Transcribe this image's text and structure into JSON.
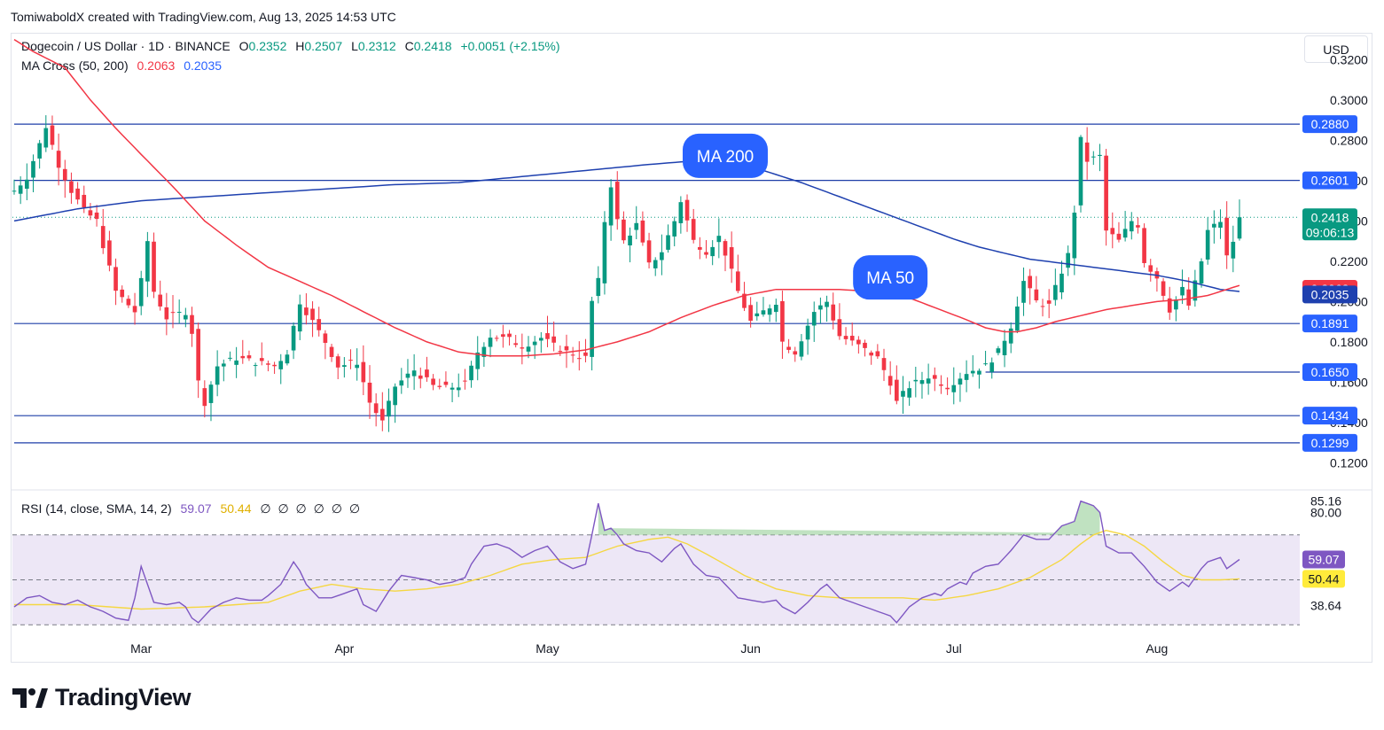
{
  "header": {
    "created_by": "TomiwaboldX created with TradingView.com, Aug 13, 2025 14:53 UTC"
  },
  "legend": {
    "symbol": "Dogecoin / US Dollar · 1D · BINANCE",
    "o_label": "O",
    "o_value": "0.2352",
    "h_label": "H",
    "h_value": "0.2507",
    "l_label": "L",
    "l_value": "0.2312",
    "c_label": "C",
    "c_value": "0.2418",
    "change": "+0.0051 (+2.15%)",
    "ma_title": "MA Cross (50, 200)",
    "ma50_value": "0.2063",
    "ma200_value": "0.2035",
    "rsi_title": "RSI (14, close, SMA, 14, 2)",
    "rsi_value": "59.07",
    "rsi_sma_value": "50.44",
    "rsi_na": "∅ ∅ ∅ ∅ ∅ ∅"
  },
  "currency_button": "USD",
  "brand": {
    "name": "TradingView"
  },
  "colors": {
    "up": "#089981",
    "down": "#f23645",
    "ma50": "#f23645",
    "ma200": "#1e40af",
    "level_line": "#1e3fa8",
    "rsi": "#7e57c2",
    "rsi_sma": "#f5d742",
    "rsi_band": "#ede7f6",
    "label_blue": "#2962ff",
    "label_current": "#089981"
  },
  "chart_data": {
    "type": "candlestick",
    "symbol": "Dogecoin / US Dollar",
    "interval": "1D",
    "exchange": "BINANCE",
    "price_axis": {
      "ylim": [
        0.107,
        0.332
      ],
      "ticks": [
        "0.3200",
        "0.3000",
        "0.2800",
        "0.2600",
        "0.2400",
        "0.2200",
        "0.2000",
        "0.1800",
        "0.1600",
        "0.1400",
        "0.1200"
      ]
    },
    "time_axis": {
      "labels": [
        "Mar",
        "Apr",
        "May",
        "Jun",
        "Jul",
        "Aug"
      ],
      "label_bar_index": [
        20,
        52,
        84,
        116,
        148,
        180
      ]
    },
    "bars_total": 194,
    "horizontal_levels": [
      {
        "value": 0.288,
        "label": "0.2880",
        "from_bar": 0
      },
      {
        "value": 0.2601,
        "label": "0.2601",
        "from_bar": 0
      },
      {
        "value": 0.1891,
        "label": "0.1891",
        "from_bar": 0
      },
      {
        "value": 0.165,
        "label": "0.1650",
        "from_bar": 153
      },
      {
        "value": 0.1434,
        "label": "0.1434",
        "from_bar": 0
      },
      {
        "value": 0.1299,
        "label": "0.1299",
        "from_bar": 0
      }
    ],
    "current_price": {
      "value": 0.2418,
      "label": "0.2418",
      "countdown": "09:06:13"
    },
    "ma50_label": {
      "value": 0.2063,
      "label": "0.2063"
    },
    "ma200_label": {
      "value": 0.2035,
      "label": "0.2035"
    },
    "annotations": [
      {
        "text": "MA 200",
        "bar": 112,
        "value": 0.2723
      },
      {
        "text": "MA 50",
        "bar": 138,
        "value": 0.212
      }
    ],
    "price_path": [
      [
        0,
        0.255
      ],
      [
        2,
        0.262
      ],
      [
        4,
        0.278
      ],
      [
        5,
        0.287
      ],
      [
        7,
        0.268
      ],
      [
        9,
        0.255
      ],
      [
        11,
        0.245
      ],
      [
        13,
        0.24
      ],
      [
        14,
        0.228
      ],
      [
        16,
        0.205
      ],
      [
        19,
        0.195
      ],
      [
        20,
        0.21
      ],
      [
        21,
        0.23
      ],
      [
        22,
        0.205
      ],
      [
        24,
        0.192
      ],
      [
        27,
        0.195
      ],
      [
        28,
        0.185
      ],
      [
        29,
        0.16
      ],
      [
        30,
        0.15
      ],
      [
        32,
        0.168
      ],
      [
        35,
        0.172
      ],
      [
        38,
        0.17
      ],
      [
        41,
        0.168
      ],
      [
        43,
        0.175
      ],
      [
        45,
        0.2
      ],
      [
        47,
        0.19
      ],
      [
        49,
        0.18
      ],
      [
        51,
        0.168
      ],
      [
        54,
        0.17
      ],
      [
        56,
        0.15
      ],
      [
        58,
        0.14
      ],
      [
        60,
        0.158
      ],
      [
        63,
        0.166
      ],
      [
        66,
        0.158
      ],
      [
        68,
        0.157
      ],
      [
        71,
        0.159
      ],
      [
        73,
        0.175
      ],
      [
        75,
        0.183
      ],
      [
        78,
        0.181
      ],
      [
        80,
        0.178
      ],
      [
        83,
        0.182
      ],
      [
        85,
        0.178
      ],
      [
        87,
        0.175
      ],
      [
        90,
        0.172
      ],
      [
        91,
        0.2
      ],
      [
        92,
        0.21
      ],
      [
        93,
        0.24
      ],
      [
        94,
        0.258
      ],
      [
        95,
        0.24
      ],
      [
        96,
        0.23
      ],
      [
        98,
        0.238
      ],
      [
        100,
        0.218
      ],
      [
        102,
        0.225
      ],
      [
        104,
        0.24
      ],
      [
        105,
        0.25
      ],
      [
        107,
        0.23
      ],
      [
        109,
        0.225
      ],
      [
        111,
        0.232
      ],
      [
        112,
        0.224
      ],
      [
        114,
        0.205
      ],
      [
        116,
        0.19
      ],
      [
        118,
        0.195
      ],
      [
        120,
        0.2
      ],
      [
        121,
        0.18
      ],
      [
        123,
        0.175
      ],
      [
        126,
        0.195
      ],
      [
        128,
        0.2
      ],
      [
        130,
        0.183
      ],
      [
        133,
        0.178
      ],
      [
        136,
        0.172
      ],
      [
        138,
        0.16
      ],
      [
        139,
        0.15
      ],
      [
        141,
        0.158
      ],
      [
        144,
        0.163
      ],
      [
        147,
        0.158
      ],
      [
        150,
        0.165
      ],
      [
        153,
        0.168
      ],
      [
        155,
        0.175
      ],
      [
        157,
        0.188
      ],
      [
        159,
        0.21
      ],
      [
        161,
        0.2
      ],
      [
        163,
        0.198
      ],
      [
        165,
        0.215
      ],
      [
        166,
        0.223
      ],
      [
        167,
        0.245
      ],
      [
        168,
        0.28
      ],
      [
        169,
        0.27
      ],
      [
        171,
        0.272
      ],
      [
        172,
        0.235
      ],
      [
        174,
        0.23
      ],
      [
        176,
        0.24
      ],
      [
        177,
        0.238
      ],
      [
        178,
        0.22
      ],
      [
        180,
        0.212
      ],
      [
        182,
        0.196
      ],
      [
        184,
        0.206
      ],
      [
        185,
        0.198
      ],
      [
        187,
        0.22
      ],
      [
        188,
        0.235
      ],
      [
        190,
        0.24
      ],
      [
        191,
        0.222
      ],
      [
        192,
        0.23
      ],
      [
        193,
        0.2418
      ]
    ],
    "ma50_path": [
      [
        0,
        0.33
      ],
      [
        3,
        0.324
      ],
      [
        8,
        0.316
      ],
      [
        12,
        0.3
      ],
      [
        16,
        0.286
      ],
      [
        20,
        0.273
      ],
      [
        25,
        0.257
      ],
      [
        30,
        0.24
      ],
      [
        35,
        0.228
      ],
      [
        40,
        0.217
      ],
      [
        45,
        0.21
      ],
      [
        50,
        0.203
      ],
      [
        55,
        0.195
      ],
      [
        60,
        0.187
      ],
      [
        65,
        0.18
      ],
      [
        70,
        0.175
      ],
      [
        75,
        0.173
      ],
      [
        80,
        0.173
      ],
      [
        85,
        0.174
      ],
      [
        90,
        0.176
      ],
      [
        95,
        0.18
      ],
      [
        100,
        0.185
      ],
      [
        105,
        0.192
      ],
      [
        110,
        0.198
      ],
      [
        115,
        0.203
      ],
      [
        120,
        0.206
      ],
      [
        125,
        0.206
      ],
      [
        130,
        0.206
      ],
      [
        135,
        0.205
      ],
      [
        140,
        0.203
      ],
      [
        145,
        0.197
      ],
      [
        150,
        0.191
      ],
      [
        153,
        0.187
      ],
      [
        156,
        0.185
      ],
      [
        158,
        0.185
      ],
      [
        161,
        0.187
      ],
      [
        164,
        0.19
      ],
      [
        168,
        0.193
      ],
      [
        172,
        0.196
      ],
      [
        176,
        0.198
      ],
      [
        180,
        0.2
      ],
      [
        184,
        0.201
      ],
      [
        188,
        0.203
      ],
      [
        190,
        0.205
      ],
      [
        192,
        0.207
      ],
      [
        193,
        0.208
      ]
    ],
    "ma200_path": [
      [
        0,
        0.24
      ],
      [
        10,
        0.246
      ],
      [
        20,
        0.25
      ],
      [
        30,
        0.252
      ],
      [
        40,
        0.254
      ],
      [
        50,
        0.256
      ],
      [
        60,
        0.258
      ],
      [
        70,
        0.259
      ],
      [
        80,
        0.262
      ],
      [
        90,
        0.265
      ],
      [
        100,
        0.268
      ],
      [
        108,
        0.27
      ],
      [
        112,
        0.27
      ],
      [
        118,
        0.265
      ],
      [
        124,
        0.259
      ],
      [
        130,
        0.252
      ],
      [
        136,
        0.245
      ],
      [
        142,
        0.238
      ],
      [
        148,
        0.231
      ],
      [
        152,
        0.227
      ],
      [
        156,
        0.224
      ],
      [
        160,
        0.221
      ],
      [
        165,
        0.219
      ],
      [
        170,
        0.217
      ],
      [
        175,
        0.215
      ],
      [
        180,
        0.213
      ],
      [
        185,
        0.21
      ],
      [
        190,
        0.206
      ],
      [
        193,
        0.205
      ]
    ],
    "rsi_panel": {
      "ylim": [
        25,
        90
      ],
      "ticks": [
        "85.16",
        "80.00",
        "38.64"
      ],
      "levels": [
        70,
        50,
        30
      ],
      "current_rsi": {
        "value": 59.07,
        "label": "59.07"
      },
      "current_sma": {
        "value": 50.44,
        "label": "50.44"
      },
      "rsi_path": [
        [
          0,
          38
        ],
        [
          2,
          42
        ],
        [
          4,
          43
        ],
        [
          6,
          40
        ],
        [
          8,
          39
        ],
        [
          10,
          41
        ],
        [
          12,
          38
        ],
        [
          14,
          36
        ],
        [
          16,
          33
        ],
        [
          18,
          32
        ],
        [
          19,
          42
        ],
        [
          20,
          56
        ],
        [
          21,
          48
        ],
        [
          22,
          40
        ],
        [
          24,
          39
        ],
        [
          26,
          40
        ],
        [
          27,
          38
        ],
        [
          28,
          33
        ],
        [
          29,
          31
        ],
        [
          31,
          37
        ],
        [
          33,
          40
        ],
        [
          35,
          42
        ],
        [
          37,
          41
        ],
        [
          39,
          41
        ],
        [
          40,
          43
        ],
        [
          42,
          48
        ],
        [
          44,
          58
        ],
        [
          45,
          54
        ],
        [
          46,
          48
        ],
        [
          48,
          42
        ],
        [
          50,
          42
        ],
        [
          52,
          44
        ],
        [
          54,
          46
        ],
        [
          55,
          39
        ],
        [
          57,
          36
        ],
        [
          59,
          45
        ],
        [
          61,
          52
        ],
        [
          63,
          51
        ],
        [
          65,
          50
        ],
        [
          67,
          48
        ],
        [
          69,
          49
        ],
        [
          71,
          51
        ],
        [
          72,
          57
        ],
        [
          74,
          65
        ],
        [
          76,
          66
        ],
        [
          78,
          64
        ],
        [
          80,
          60
        ],
        [
          82,
          63
        ],
        [
          84,
          65
        ],
        [
          86,
          58
        ],
        [
          88,
          55
        ],
        [
          90,
          57
        ],
        [
          91,
          70
        ],
        [
          92,
          84
        ],
        [
          93,
          72
        ],
        [
          94,
          73
        ],
        [
          95,
          70
        ],
        [
          96,
          66
        ],
        [
          98,
          63
        ],
        [
          100,
          62
        ],
        [
          102,
          58
        ],
        [
          104,
          64
        ],
        [
          105,
          66
        ],
        [
          107,
          57
        ],
        [
          109,
          52
        ],
        [
          111,
          51
        ],
        [
          112,
          48
        ],
        [
          114,
          42
        ],
        [
          116,
          41
        ],
        [
          118,
          40
        ],
        [
          120,
          41
        ],
        [
          121,
          38
        ],
        [
          123,
          35
        ],
        [
          125,
          40
        ],
        [
          127,
          46
        ],
        [
          128,
          48
        ],
        [
          130,
          42
        ],
        [
          132,
          40
        ],
        [
          134,
          38
        ],
        [
          136,
          36
        ],
        [
          138,
          34
        ],
        [
          139,
          31
        ],
        [
          141,
          38
        ],
        [
          143,
          42
        ],
        [
          145,
          44
        ],
        [
          146,
          43
        ],
        [
          147,
          46
        ],
        [
          149,
          49
        ],
        [
          150,
          48
        ],
        [
          151,
          53
        ],
        [
          153,
          56
        ],
        [
          155,
          57
        ],
        [
          157,
          63
        ],
        [
          159,
          70
        ],
        [
          161,
          68
        ],
        [
          163,
          68
        ],
        [
          165,
          74
        ],
        [
          167,
          76
        ],
        [
          168,
          85
        ],
        [
          170,
          83
        ],
        [
          171,
          80
        ],
        [
          172,
          65
        ],
        [
          174,
          62
        ],
        [
          176,
          62
        ],
        [
          178,
          56
        ],
        [
          180,
          49
        ],
        [
          182,
          45
        ],
        [
          184,
          49
        ],
        [
          185,
          47
        ],
        [
          187,
          55
        ],
        [
          188,
          58
        ],
        [
          190,
          60
        ],
        [
          191,
          55
        ],
        [
          192,
          57
        ],
        [
          193,
          59.07
        ]
      ],
      "sma_path": [
        [
          0,
          39
        ],
        [
          10,
          39
        ],
        [
          20,
          37
        ],
        [
          30,
          38
        ],
        [
          40,
          40
        ],
        [
          45,
          45
        ],
        [
          50,
          48
        ],
        [
          55,
          46
        ],
        [
          60,
          45
        ],
        [
          65,
          46
        ],
        [
          70,
          48
        ],
        [
          75,
          52
        ],
        [
          80,
          57
        ],
        [
          85,
          59
        ],
        [
          90,
          60
        ],
        [
          95,
          65
        ],
        [
          100,
          68
        ],
        [
          103,
          69
        ],
        [
          106,
          66
        ],
        [
          110,
          60
        ],
        [
          115,
          52
        ],
        [
          120,
          46
        ],
        [
          125,
          43
        ],
        [
          130,
          42
        ],
        [
          135,
          42
        ],
        [
          140,
          42
        ],
        [
          145,
          41
        ],
        [
          150,
          43
        ],
        [
          155,
          46
        ],
        [
          160,
          51
        ],
        [
          165,
          59
        ],
        [
          168,
          66
        ],
        [
          170,
          70
        ],
        [
          172,
          72
        ],
        [
          175,
          70
        ],
        [
          178,
          65
        ],
        [
          181,
          58
        ],
        [
          184,
          52
        ],
        [
          187,
          50
        ],
        [
          190,
          50
        ],
        [
          193,
          50.44
        ]
      ]
    }
  }
}
